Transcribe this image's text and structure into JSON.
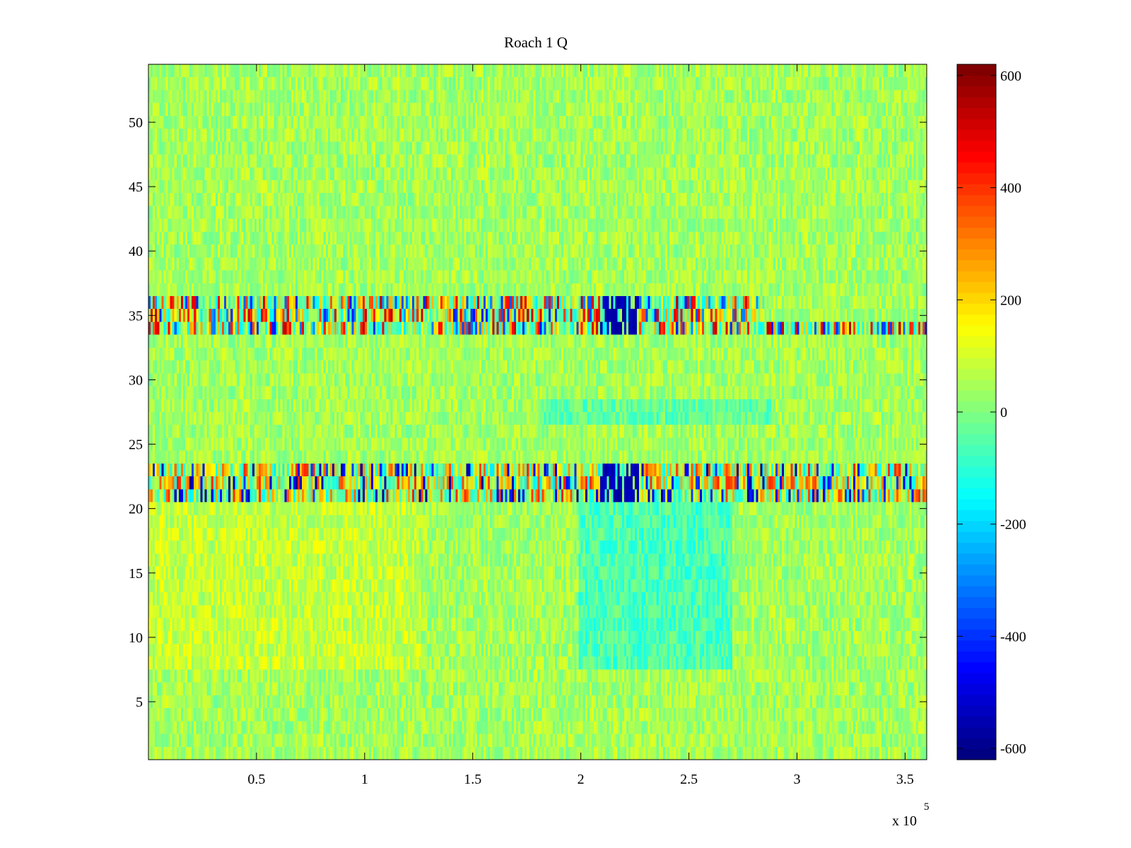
{
  "chart_data": {
    "type": "heatmap",
    "title": "Roach 1 Q",
    "xlabel": "",
    "ylabel": "",
    "x_exponent_label": "x 10",
    "x_exponent": "5",
    "xlim": [
      0,
      3.6
    ],
    "ylim": [
      0.5,
      54.5
    ],
    "x_ticks": [
      0.5,
      1,
      1.5,
      2,
      2.5,
      3,
      3.5
    ],
    "x_tick_labels": [
      "0.5",
      "1",
      "1.5",
      "2",
      "2.5",
      "3",
      "3.5"
    ],
    "y_ticks": [
      5,
      10,
      15,
      20,
      25,
      30,
      35,
      40,
      45,
      50
    ],
    "y_tick_labels": [
      "5",
      "10",
      "15",
      "20",
      "25",
      "30",
      "35",
      "40",
      "45",
      "50"
    ],
    "rows": 54,
    "colormap": "jet",
    "colorbar": {
      "range": [
        -620,
        620
      ],
      "ticks": [
        600,
        400,
        200,
        0,
        -200,
        -400,
        -600
      ],
      "tick_labels": [
        "600",
        "400",
        "200",
        "0",
        "-200",
        "-400",
        "-600"
      ],
      "placement": "right"
    },
    "row_profiles": [
      {
        "rows": [
          34,
          36
        ],
        "description_values": "strong alternating positive/negative bursts, up to ~550 and down to ~-500"
      },
      {
        "rows": [
          21,
          23
        ],
        "description_values": "strong alternating positive/negative bursts, up to ~450 and down to ~-620"
      }
    ],
    "background_level": [
      0,
      120
    ],
    "grid": false
  }
}
